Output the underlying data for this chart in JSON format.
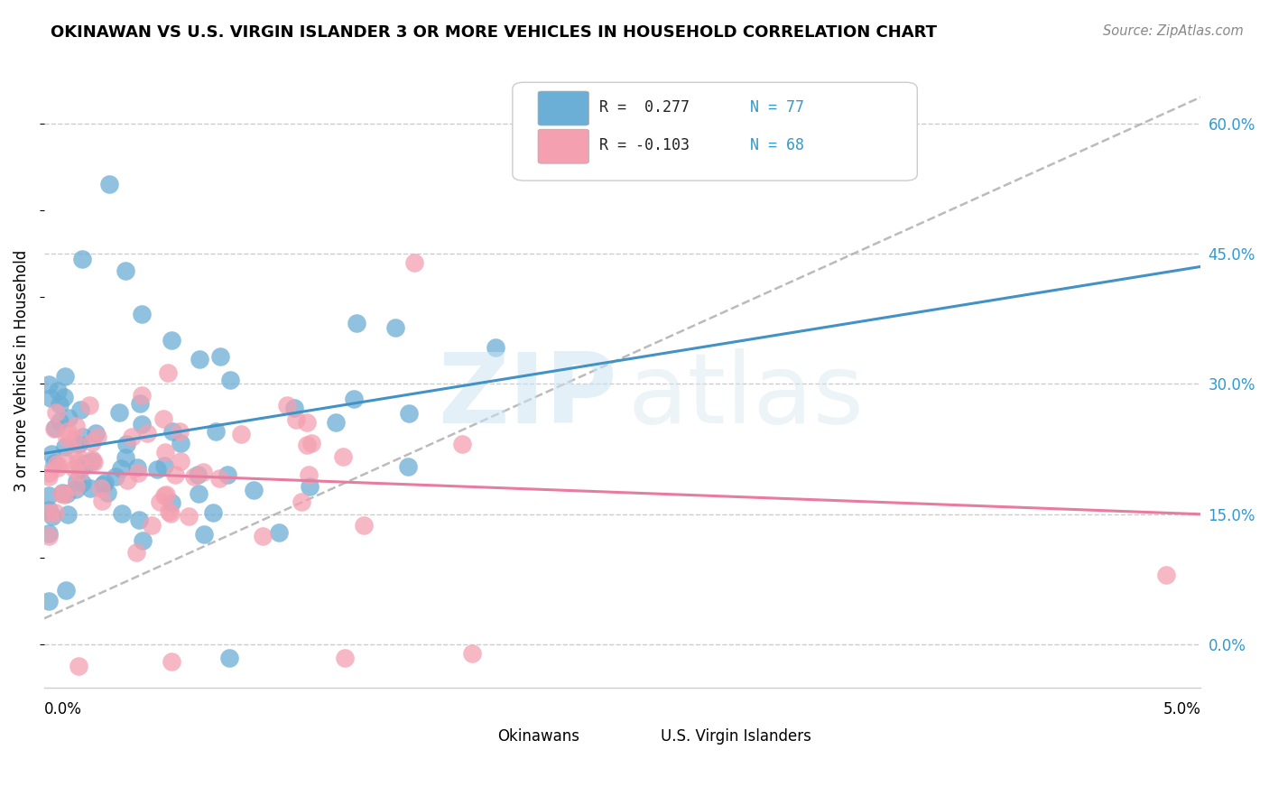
{
  "title": "OKINAWAN VS U.S. VIRGIN ISLANDER 3 OR MORE VEHICLES IN HOUSEHOLD CORRELATION CHART",
  "source": "Source: ZipAtlas.com",
  "ylabel": "3 or more Vehicles in Household",
  "xlim": [
    0.0,
    5.0
  ],
  "ylim": [
    -5.0,
    68.0
  ],
  "yticks": [
    0.0,
    15.0,
    30.0,
    45.0,
    60.0
  ],
  "ytick_labels": [
    "0.0%",
    "15.0%",
    "30.0%",
    "45.0%",
    "60.0%"
  ],
  "color_blue": "#6baed6",
  "color_pink": "#f4a0b0",
  "color_blue_line": "#4292c6",
  "color_pink_line": "#e87ca0",
  "color_gray_line": "#aaaaaa",
  "r1_text": "R =  0.277",
  "n1_text": "N = 77",
  "r2_text": "R = -0.103",
  "n2_text": "N = 68",
  "legend1": "Okinawans",
  "legend2": "U.S. Virgin Islanders"
}
